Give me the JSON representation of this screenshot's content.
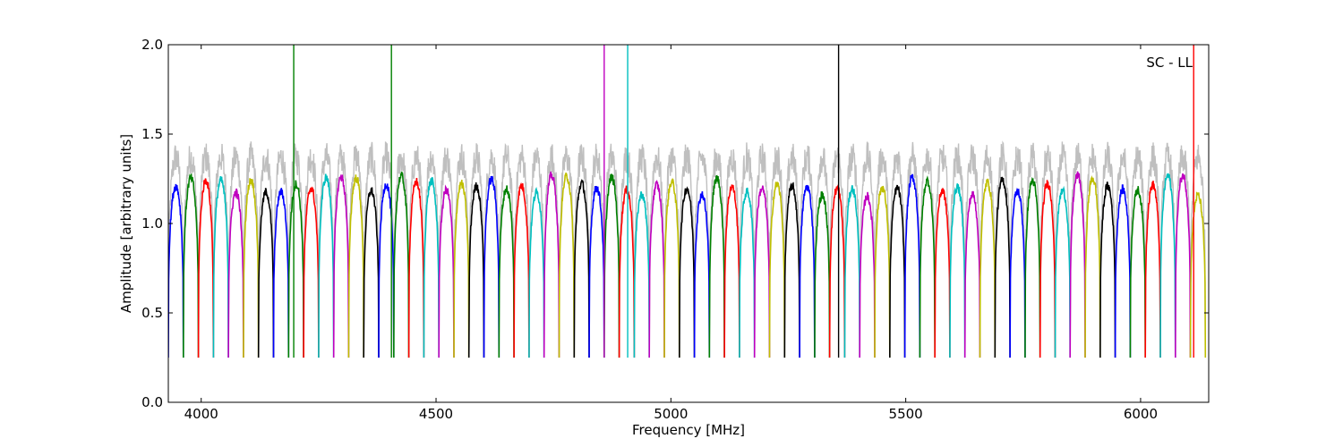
{
  "chart_data": {
    "type": "line",
    "xlabel": "Frequency [MHz]",
    "ylabel": "Amplitude [arbitrary units]",
    "annotation": "SC - LL",
    "xlim": [
      3930,
      6145
    ],
    "ylim": [
      0.0,
      2.0
    ],
    "xticks": [
      "4000",
      "4500",
      "5000",
      "5500",
      "6000"
    ],
    "yticks": [
      "0.0",
      "0.5",
      "1.0",
      "1.5",
      "2.0"
    ],
    "grid": false,
    "legend": "none",
    "colors": {
      "background_trace": "#bfbfbf",
      "cycle": [
        "#0000ff",
        "#008000",
        "#ff0000",
        "#00bfbf",
        "#bf00bf",
        "#bfbf00",
        "#000000"
      ]
    },
    "channels": {
      "start_mhz": 3930,
      "width_mhz": 32,
      "count": 69,
      "center_amplitude_level": 1.2,
      "edge_amplitude_min": 0.25
    },
    "spikes": [
      {
        "x": 4197,
        "y": 2.0,
        "color": "#008000"
      },
      {
        "x": 4405,
        "y": 2.0,
        "color": "#008000"
      },
      {
        "x": 4858,
        "y": 2.0,
        "color": "#bf00bf"
      },
      {
        "x": 4908,
        "y": 2.0,
        "color": "#00bfbf"
      },
      {
        "x": 5357,
        "y": 2.0,
        "color": "#000000"
      },
      {
        "x": 6113,
        "y": 2.0,
        "color": "#ff0000"
      }
    ]
  }
}
